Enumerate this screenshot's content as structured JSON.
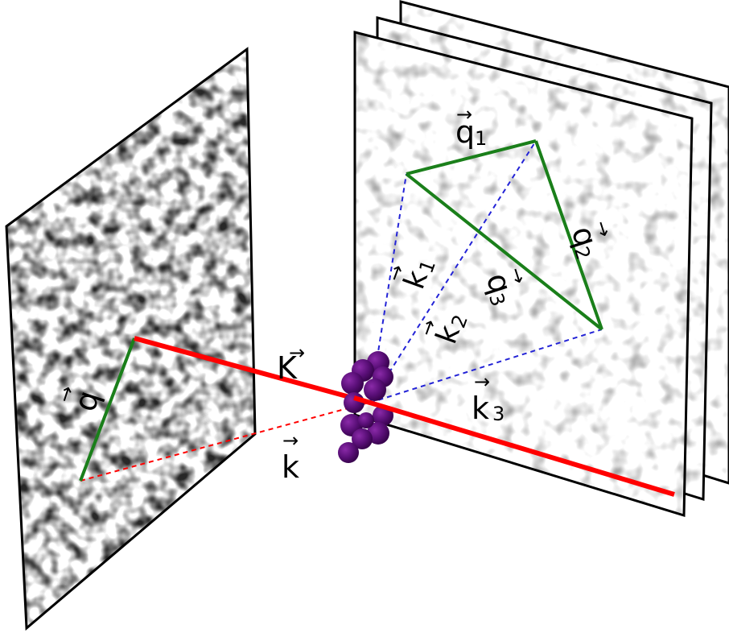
{
  "colors": {
    "beam": "#ff0000",
    "scatter_vector": "#1a7f1a",
    "wavevector_dashed": "#2323d6",
    "detector_border": "#000000",
    "particle": "#5a0f78"
  },
  "labels": {
    "K": "K",
    "k": "k",
    "q": "q",
    "q1": "q",
    "q1_sub": "1",
    "q2": "q",
    "q2_sub": "2",
    "q3": "q",
    "q3_sub": "3",
    "k1": "k",
    "k1_sub": "1",
    "k2": "k",
    "k2_sub": "2",
    "k3": "k",
    "k3_sub": "3"
  }
}
